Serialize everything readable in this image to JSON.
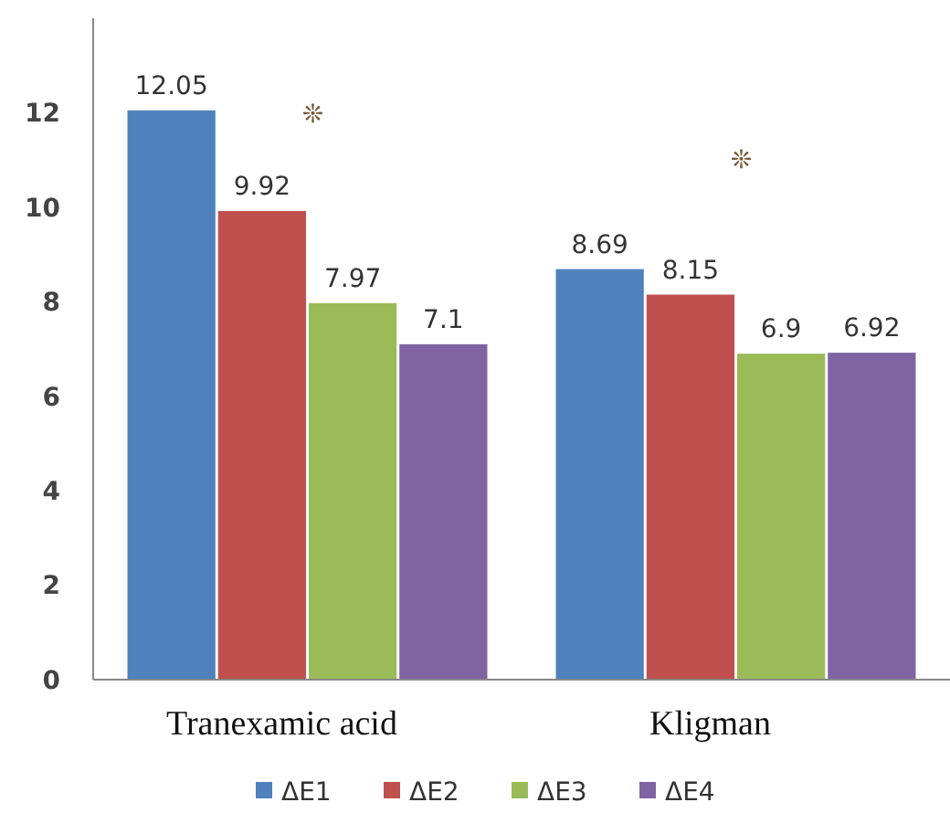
{
  "chart_data": {
    "type": "bar",
    "categories": [
      "Tranexamic acid",
      "Kligman"
    ],
    "series": [
      {
        "name": "ΔE1",
        "color": "#4f81bd",
        "values": [
          12.05,
          8.69
        ]
      },
      {
        "name": "ΔE2",
        "color": "#c0504d",
        "values": [
          9.92,
          8.15
        ]
      },
      {
        "name": "ΔE3",
        "color": "#9bbb59",
        "values": [
          7.97,
          6.9
        ]
      },
      {
        "name": "ΔE4",
        "color": "#8064a2",
        "values": [
          7.1,
          6.92
        ]
      }
    ],
    "ylim": [
      0,
      14
    ],
    "yticks": [
      0,
      2,
      4,
      6,
      8,
      10,
      12
    ],
    "grid": false,
    "legend": "bottom",
    "data_labels": true,
    "annotations": [
      "❊",
      "❊"
    ]
  }
}
